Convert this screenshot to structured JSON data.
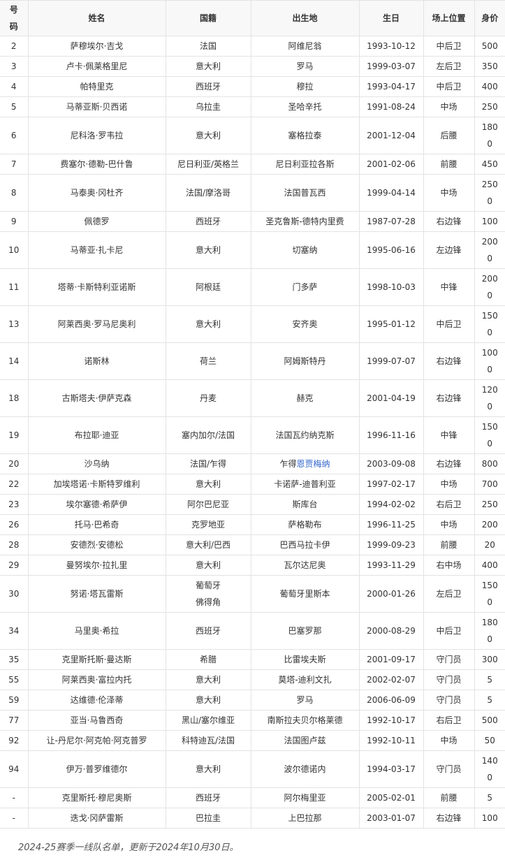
{
  "table": {
    "headers": [
      "号码",
      "姓名",
      "国籍",
      "出生地",
      "生日",
      "场上位置",
      "身价"
    ],
    "rows": [
      [
        "2",
        "萨穆埃尔·吉戈",
        "法国",
        "阿维尼翁",
        "1993-10-12",
        "中后卫",
        "500"
      ],
      [
        "3",
        "卢卡·佩莱格里尼",
        "意大利",
        "罗马",
        "1999-03-07",
        "左后卫",
        "350"
      ],
      [
        "4",
        "帕特里克",
        "西班牙",
        "穆拉",
        "1993-04-17",
        "中后卫",
        "400"
      ],
      [
        "5",
        "马蒂亚斯·贝西诺",
        "乌拉圭",
        "圣哈辛托",
        "1991-08-24",
        "中场",
        "250"
      ],
      [
        "6",
        "尼科洛·罗韦拉",
        "意大利",
        "塞格拉泰",
        "2001-12-04",
        "后腰",
        "1800"
      ],
      [
        "7",
        "费塞尔·德勒-巴什鲁",
        "尼日利亚/英格兰",
        "尼日利亚拉各斯",
        "2001-02-06",
        "前腰",
        "450"
      ],
      [
        "8",
        "马泰奥·冈杜齐",
        "法国/摩洛哥",
        "法国普瓦西",
        "1999-04-14",
        "中场",
        "2500"
      ],
      [
        "9",
        "佩德罗",
        "西班牙",
        "圣克鲁斯-德特内里费",
        "1987-07-28",
        "右边锋",
        "100"
      ],
      [
        "10",
        "马蒂亚·扎卡尼",
        "意大利",
        "切塞纳",
        "1995-06-16",
        "左边锋",
        "2000"
      ],
      [
        "11",
        "塔蒂·卡斯特利亚诺斯",
        "阿根廷",
        "门多萨",
        "1998-10-03",
        "中锋",
        "2000"
      ],
      [
        "13",
        "阿莱西奥·罗马尼奥利",
        "意大利",
        "安齐奥",
        "1995-01-12",
        "中后卫",
        "1500"
      ],
      [
        "14",
        "诺斯林",
        "荷兰",
        "阿姆斯特丹",
        "1999-07-07",
        "右边锋",
        "1000"
      ],
      [
        "18",
        "古斯塔夫·伊萨克森",
        "丹麦",
        "赫克",
        "2001-04-19",
        "右边锋",
        "1200"
      ],
      [
        "19",
        "布拉耶·迪亚",
        "塞内加尔/法国",
        "法国瓦约纳克斯",
        "1996-11-16",
        "中锋",
        "1500"
      ],
      [
        "20",
        "沙乌纳",
        "法国/乍得",
        "乍得恩贾梅纳",
        "2003-09-08",
        "右边锋",
        "800"
      ],
      [
        "22",
        "加埃塔诺·卡斯特罗维利",
        "意大利",
        "卡诺萨-迪普利亚",
        "1997-02-17",
        "中场",
        "700"
      ],
      [
        "23",
        "埃尔塞德·希萨伊",
        "阿尔巴尼亚",
        "斯库台",
        "1994-02-02",
        "右后卫",
        "250"
      ],
      [
        "26",
        "托马·巴希奇",
        "克罗地亚",
        "萨格勒布",
        "1996-11-25",
        "中场",
        "200"
      ],
      [
        "28",
        "安德烈·安德松",
        "意大利/巴西",
        "巴西马拉卡伊",
        "1999-09-23",
        "前腰",
        "20"
      ],
      [
        "29",
        "曼努埃尔·拉扎里",
        "意大利",
        "瓦尔达尼奥",
        "1993-11-29",
        "右中场",
        "400"
      ],
      [
        "30",
        "努诺·塔瓦雷斯",
        "葡萄牙\n佛得角",
        "葡萄牙里斯本",
        "2000-01-26",
        "左后卫",
        "1500"
      ],
      [
        "34",
        "马里奥·希拉",
        "西班牙",
        "巴塞罗那",
        "2000-08-29",
        "中后卫",
        "1800"
      ],
      [
        "35",
        "克里斯托斯·曼达斯",
        "希腊",
        "比雷埃夫斯",
        "2001-09-17",
        "守门员",
        "300"
      ],
      [
        "55",
        "阿莱西奥·富拉内托",
        "意大利",
        "莫塔-迪利文扎",
        "2002-02-07",
        "守门员",
        "5"
      ],
      [
        "59",
        "达维德·伦泽蒂",
        "意大利",
        "罗马",
        "2006-06-09",
        "守门员",
        "5"
      ],
      [
        "77",
        "亚当·马鲁西奇",
        "黑山/塞尔维亚",
        "南斯拉夫贝尔格莱德",
        "1992-10-17",
        "右后卫",
        "500"
      ],
      [
        "92",
        "让-丹尼尔·阿克帕·阿克普罗",
        "科特迪瓦/法国",
        "法国图卢兹",
        "1992-10-11",
        "中场",
        "50"
      ],
      [
        "94",
        "伊万·普罗维德尔",
        "意大利",
        "波尔德诺内",
        "1994-03-17",
        "守门员",
        "1400"
      ],
      [
        "-",
        "克里斯托·穆尼奥斯",
        "西班牙",
        "阿尔梅里亚",
        "2005-02-01",
        "前腰",
        "5"
      ],
      [
        "-",
        "迭戈·冈萨雷斯",
        "巴拉圭",
        "上巴拉那",
        "2003-01-07",
        "右边锋",
        "100"
      ]
    ],
    "links": {
      "乍得恩贾梅纳": {
        "prefix": "乍得",
        "link": "恩贾梅纳"
      }
    }
  },
  "caption": "2024-25赛季一线队名单，更新于2024年10月30日。",
  "colors": {
    "link": "#3366cc",
    "header_bg": "#f8f8f8",
    "border": "#e3e3e3",
    "text": "#333333"
  }
}
